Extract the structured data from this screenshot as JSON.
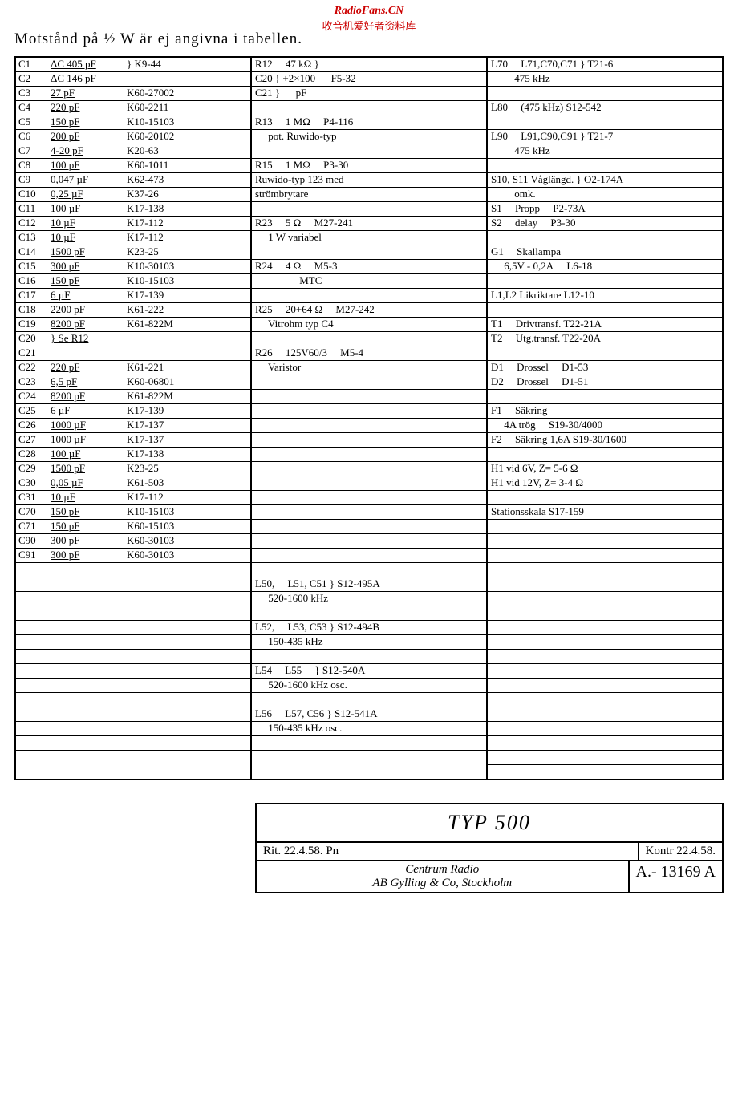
{
  "watermarks": {
    "w1": "RadioFans.CN",
    "w2": "收音机爱好者资料库"
  },
  "title": "Motstånd på ½ W är ej angivna i tabellen.",
  "col1": [
    {
      "r": "C1",
      "v": "ΔC 405 pF",
      "p": "} K9-44"
    },
    {
      "r": "C2",
      "v": "ΔC 146 pF",
      "p": ""
    },
    {
      "r": "C3",
      "v": "27 pF",
      "p": "K60-27002"
    },
    {
      "r": "C4",
      "v": "220 pF",
      "p": "K60-2211"
    },
    {
      "r": "C5",
      "v": "150 pF",
      "p": "K10-15103"
    },
    {
      "r": "C6",
      "v": "200 pF",
      "p": "K60-20102"
    },
    {
      "r": "C7",
      "v": "4-20 pF",
      "p": "K20-63"
    },
    {
      "r": "C8",
      "v": "100 pF",
      "p": "K60-1011"
    },
    {
      "r": "C9",
      "v": "0,047 µF",
      "p": "K62-473"
    },
    {
      "r": "C10",
      "v": "0,25 µF",
      "p": "K37-26"
    },
    {
      "r": "C11",
      "v": "100 µF",
      "p": "K17-138"
    },
    {
      "r": "C12",
      "v": "10 µF",
      "p": "K17-112"
    },
    {
      "r": "C13",
      "v": "10 µF",
      "p": "K17-112"
    },
    {
      "r": "C14",
      "v": "1500 pF",
      "p": "K23-25"
    },
    {
      "r": "C15",
      "v": "300 pF",
      "p": "K10-30103"
    },
    {
      "r": "C16",
      "v": "150 pF",
      "p": "K10-15103"
    },
    {
      "r": "C17",
      "v": "6 µF",
      "p": "K17-139"
    },
    {
      "r": "C18",
      "v": "2200 pF",
      "p": "K61-222"
    },
    {
      "r": "C19",
      "v": "8200 pF",
      "p": "K61-822M"
    },
    {
      "r": "C20",
      "v": "} Se R12",
      "p": ""
    },
    {
      "r": "C21",
      "v": "",
      "p": ""
    },
    {
      "r": "C22",
      "v": "220 pF",
      "p": "K61-221"
    },
    {
      "r": "C23",
      "v": "6,5 pF",
      "p": "K60-06801"
    },
    {
      "r": "C24",
      "v": "8200 pF",
      "p": "K61-822M"
    },
    {
      "r": "C25",
      "v": "6 µF",
      "p": "K17-139"
    },
    {
      "r": "C26",
      "v": "1000 µF",
      "p": "K17-137"
    },
    {
      "r": "C27",
      "v": "1000 µF",
      "p": "K17-137"
    },
    {
      "r": "C28",
      "v": "100 µF",
      "p": "K17-138"
    },
    {
      "r": "C29",
      "v": "1500 pF",
      "p": "K23-25"
    },
    {
      "r": "C30",
      "v": "0,05 µF",
      "p": "K61-503"
    },
    {
      "r": "C31",
      "v": "10 µF",
      "p": "K17-112"
    },
    {
      "r": "C70",
      "v": "150 pF",
      "p": "K10-15103"
    },
    {
      "r": "C71",
      "v": "150 pF",
      "p": "K60-15103"
    },
    {
      "r": "C90",
      "v": "300 pF",
      "p": "K60-30103"
    },
    {
      "r": "C91",
      "v": "300 pF",
      "p": "K60-30103"
    },
    {
      "r": "",
      "v": "",
      "p": ""
    },
    {
      "r": "",
      "v": "",
      "p": ""
    },
    {
      "r": "",
      "v": "",
      "p": ""
    },
    {
      "r": "",
      "v": "",
      "p": ""
    },
    {
      "r": "",
      "v": "",
      "p": ""
    },
    {
      "r": "",
      "v": "",
      "p": ""
    },
    {
      "r": "",
      "v": "",
      "p": ""
    },
    {
      "r": "",
      "v": "",
      "p": ""
    },
    {
      "r": "",
      "v": "",
      "p": ""
    },
    {
      "r": "",
      "v": "",
      "p": ""
    },
    {
      "r": "",
      "v": "",
      "p": ""
    },
    {
      "r": "",
      "v": "",
      "p": ""
    },
    {
      "r": "",
      "v": "",
      "p": ""
    },
    {
      "r": "",
      "v": "",
      "p": ""
    }
  ],
  "col2": [
    "R12  47 kΩ }",
    "C20 } +2×100   F5-32",
    "C21 }   pF",
    "",
    "R13  1 MΩ  P4-116",
    "  pot. Ruwido-typ",
    "",
    "R15  1 MΩ  P3-30",
    "Ruwido-typ 123 med",
    "strömbrytare",
    "",
    "R23  5 Ω  M27-241",
    "  1 W variabel",
    "",
    "R24  4 Ω  M5-3",
    "     MTC",
    "",
    "R25  20+64 Ω  M27-242",
    "  Vitrohm typ C4",
    "",
    "R26  125V60/3  M5-4",
    "  Varistor",
    "",
    "",
    "",
    "",
    "",
    "",
    "",
    "",
    "",
    "",
    "",
    "",
    "",
    "",
    "L50,  L51, C51 } S12-495A",
    "  520-1600 kHz",
    "",
    "L52,  L53, C53 } S12-494B",
    "  150-435 kHz",
    "",
    "L54  L55  } S12-540A",
    "  520-1600 kHz osc.",
    "",
    "L56  L57, C56 } S12-541A",
    "  150-435 kHz osc.",
    "",
    ""
  ],
  "col3": [
    "L70  L71,C70,C71 } T21-6",
    "   475 kHz",
    "",
    "L80  (475 kHz) S12-542",
    "",
    "L90  L91,C90,C91 } T21-7",
    "   475 kHz",
    "",
    "S10, S11 Våglängd. } O2-174A",
    "   omk.",
    "S1  Propp  P2-73A",
    "S2  delay  P3-30",
    "",
    "G1  Skallampa",
    "  6,5V - 0,2A  L6-18",
    "",
    "L1,L2 Likriktare L12-10",
    "",
    "T1  Drivtransf. T22-21A",
    "T2  Utg.transf. T22-20A",
    "",
    "D1  Drossel  D1-53",
    "D2  Drossel  D1-51",
    "",
    "F1  Säkring",
    "  4A trög  S19-30/4000",
    "F2  Säkring 1,6A S19-30/1600",
    "",
    "H1 vid 6V, Z= 5-6 Ω",
    "H1 vid 12V, Z= 3-4 Ω",
    "",
    "Stationsskala S17-159",
    "",
    "",
    "",
    "",
    "",
    "",
    "",
    "",
    "",
    "",
    "",
    "",
    "",
    "",
    "",
    "",
    "",
    ""
  ],
  "footer": {
    "title": "TYP 500",
    "rit": "Rit. 22.4.58.  Pn",
    "kontr": "Kontr 22.4.58.",
    "company": "Centrum Radio\nAB Gylling & Co, Stockholm",
    "drawing": "A.- 13169 A"
  }
}
